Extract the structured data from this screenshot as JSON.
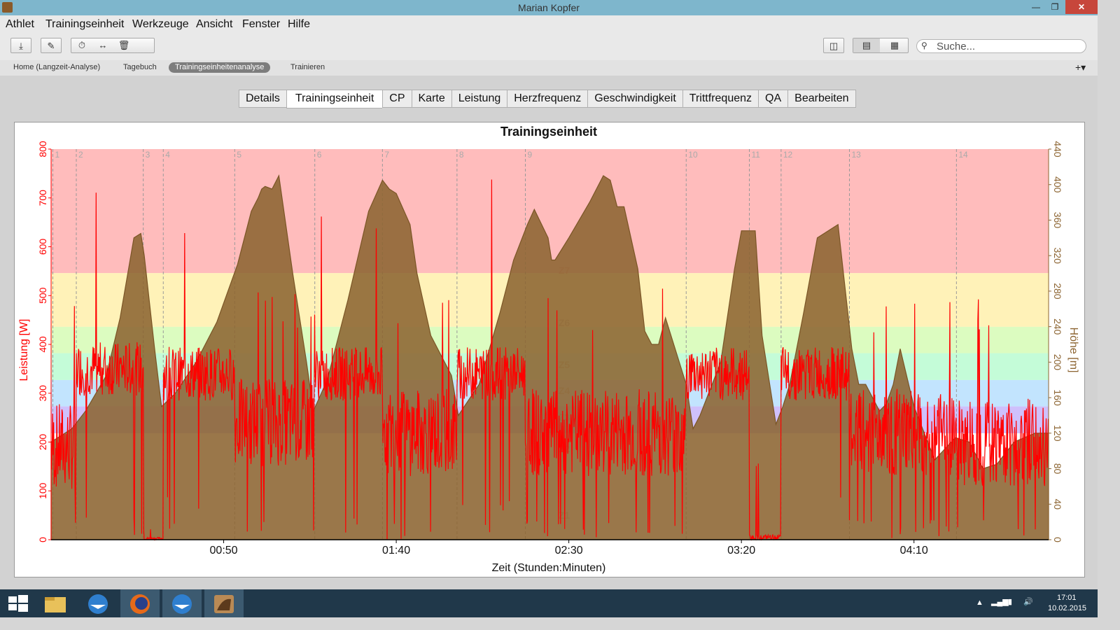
{
  "window": {
    "title": "Marian Kopfer"
  },
  "menu": [
    "Athlet",
    "Trainingseinheit",
    "Werkzeuge",
    "Ansicht",
    "Fenster",
    "Hilfe"
  ],
  "search": {
    "placeholder": "Suche..."
  },
  "nav_tabs": [
    "Home (Langzeit-Analyse)",
    "Tagebuch",
    "Trainingseinheitenanalyse",
    "Trainieren"
  ],
  "nav_active": "Trainingseinheitenanalyse",
  "content_tabs": [
    "Details",
    "Trainingseinheit",
    "CP",
    "Karte",
    "Leistung",
    "Herzfrequenz",
    "Geschwindigkeit",
    "Trittfrequenz",
    "QA",
    "Bearbeiten"
  ],
  "content_active": "Trainingseinheit",
  "taskbar": {
    "time": "17:01",
    "date": "10.02.2015"
  },
  "chart_data": {
    "type": "area",
    "title": "Trainingseinheit",
    "xlabel": "Zeit (Stunden:Minuten)",
    "ylabel_left": "Leistung [W]",
    "ylabel_right": "Höhe [m]",
    "x_ticks": [
      "00:50",
      "01:40",
      "02:30",
      "03:20",
      "04:10"
    ],
    "x_range_minutes": [
      0,
      289
    ],
    "y_left_ticks": [
      0,
      100,
      200,
      300,
      400,
      500,
      600,
      700,
      800
    ],
    "y_left_range": [
      0,
      800
    ],
    "y_right_ticks": [
      0,
      40,
      80,
      120,
      160,
      200,
      240,
      280,
      320,
      360,
      400,
      440
    ],
    "y_right_range": [
      0,
      440
    ],
    "zones": [
      {
        "name": "Z7",
        "from": 546,
        "to": 800,
        "color": "#ffbcbc"
      },
      {
        "name": "Z6",
        "from": 436,
        "to": 546,
        "color": "#fff2b8"
      },
      {
        "name": "Z5",
        "from": 382,
        "to": 436,
        "color": "#dcfcc0"
      },
      {
        "name": "Z4",
        "from": 327,
        "to": 382,
        "color": "#c4fcd8"
      },
      {
        "name": "Z3",
        "from": 273,
        "to": 327,
        "color": "#c2e4fe"
      },
      {
        "name": "Z2",
        "from": 218,
        "to": 273,
        "color": "#cfc0fc"
      },
      {
        "name": "Z1",
        "from": 0,
        "to": 218,
        "color": "#ffffff"
      }
    ],
    "zone_labels": [
      "Z7",
      "Z6",
      "Z5",
      "Z4",
      "Z3",
      "Z2",
      "Z1"
    ],
    "interval_markers": [
      {
        "label": "1",
        "t": 0.5
      },
      {
        "label": "2",
        "t": 7.3
      },
      {
        "label": "3",
        "t": 26.7
      },
      {
        "label": "4",
        "t": 32.5
      },
      {
        "label": "5",
        "t": 53.2
      },
      {
        "label": "6",
        "t": 76.4
      },
      {
        "label": "7",
        "t": 96.0
      },
      {
        "label": "8",
        "t": 117.6
      },
      {
        "label": "9",
        "t": 137.4
      },
      {
        "label": "10",
        "t": 184.0
      },
      {
        "label": "11",
        "t": 202.3
      },
      {
        "label": "12",
        "t": 211.5
      },
      {
        "label": "13",
        "t": 231.3
      },
      {
        "label": "14",
        "t": 262.3
      }
    ],
    "series": [
      {
        "name": "Höhe",
        "unit": "m",
        "color": "#8c6431",
        "x": [
          0,
          6,
          10,
          16,
          20,
          24,
          26,
          27,
          30,
          32,
          36,
          42,
          48,
          54,
          58,
          60,
          61,
          62,
          64,
          66,
          70,
          74,
          76,
          80,
          86,
          92,
          96,
          98,
          100,
          104,
          106,
          110,
          116,
          118,
          124,
          130,
          134,
          138,
          140,
          144,
          145,
          146,
          150,
          156,
          160,
          162,
          164,
          166,
          170,
          172,
          174,
          176,
          178,
          184,
          186,
          188,
          194,
          198,
          200,
          204,
          206,
          210,
          212,
          214,
          218,
          222,
          228,
          232,
          234,
          236,
          240,
          242,
          244,
          246,
          250,
          256,
          262,
          266,
          270,
          274,
          279,
          285,
          289
        ],
        "y": [
          110,
          125,
          145,
          185,
          250,
          340,
          345,
          320,
          215,
          150,
          165,
          200,
          245,
          310,
          370,
          385,
          395,
          398,
          395,
          410,
          300,
          200,
          145,
          180,
          270,
          370,
          405,
          395,
          390,
          355,
          300,
          230,
          185,
          140,
          175,
          255,
          315,
          355,
          372,
          340,
          315,
          315,
          340,
          380,
          410,
          405,
          375,
          375,
          305,
          235,
          220,
          220,
          250,
          175,
          125,
          140,
          200,
          305,
          348,
          348,
          230,
          130,
          150,
          175,
          255,
          340,
          355,
          215,
          175,
          175,
          145,
          153,
          175,
          215,
          150,
          90,
          115,
          110,
          80,
          85,
          110,
          120,
          120
        ]
      },
      {
        "name": "Leistung",
        "unit": "W",
        "color": "#ff0000",
        "note": "noisy power trace rendered procedurally around these interval means",
        "interval_means": [
          190,
          350,
          5,
          340,
          240,
          340,
          220,
          340,
          220,
          340,
          10,
          340,
          220,
          200
        ]
      }
    ]
  }
}
